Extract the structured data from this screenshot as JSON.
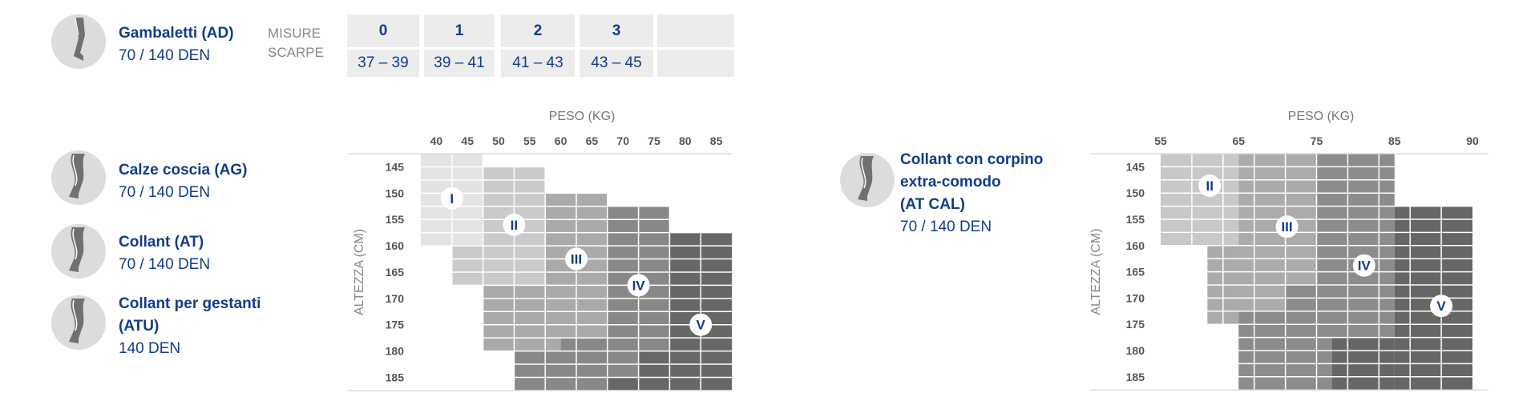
{
  "colors": {
    "accent": "#123c8a",
    "label": "#555555",
    "table_bg": "#ececec"
  },
  "products_top": {
    "icon": "knee-sock-icon",
    "title": "Gambaletti (AD)",
    "sub": "70 / 140 DEN"
  },
  "shoe_table": {
    "label_line1": "MISURE",
    "label_line2": "SCARPE",
    "sizes": [
      "0",
      "1",
      "2",
      "3",
      ""
    ],
    "ranges": [
      "37 – 39",
      "39 – 41",
      "41 – 43",
      "43 – 45",
      ""
    ]
  },
  "products_left": [
    {
      "icon": "thigh-stocking-icon",
      "title_lines": [
        "Calze coscia (AG)"
      ],
      "sub": "70 / 140 DEN"
    },
    {
      "icon": "tights-icon",
      "title_lines": [
        "Collant (AT)"
      ],
      "sub": "70 / 140 DEN"
    },
    {
      "icon": "maternity-tights-icon",
      "title_lines": [
        "Collant per gestanti",
        "(ATU)"
      ],
      "sub": "140 DEN"
    }
  ],
  "products_right": {
    "icon": "comfort-tights-icon",
    "title_lines": [
      "Collant con corpino",
      "extra-comodo",
      "(AT CAL)"
    ],
    "sub": "70 / 140 DEN"
  },
  "chart_data": [
    {
      "type": "heatmap",
      "xlabel": "PESO (KG)",
      "ylabel": "ALTEZZA (CM)",
      "x_ticks": [
        "40",
        "45",
        "50",
        "55",
        "60",
        "65",
        "70",
        "75",
        "80",
        "85"
      ],
      "y_ticks": [
        "145",
        "150",
        "155",
        "160",
        "165",
        "170",
        "175",
        "180",
        "185"
      ],
      "xlim": [
        37.5,
        87.5
      ],
      "ylim": [
        142.5,
        187.5
      ],
      "zones": [
        {
          "name": "I",
          "color": "#e3e3e3",
          "marker": [
            42.5,
            151
          ],
          "areas": [
            [
              37.5,
              47.5,
              142.5,
              160
            ]
          ]
        },
        {
          "name": "II",
          "color": "#cacaca",
          "marker": [
            52.5,
            156
          ],
          "areas": [
            [
              47.5,
              57.5,
              145,
              167.5
            ],
            [
              42.5,
              47.5,
              160,
              167.5
            ]
          ]
        },
        {
          "name": "III",
          "color": "#aaaaaa",
          "marker": [
            62.5,
            162.5
          ],
          "areas": [
            [
              57.5,
              67.5,
              150,
              177.5
            ],
            [
              47.5,
              57.5,
              167.5,
              180
            ],
            [
              57.5,
              60,
              177.5,
              180
            ]
          ]
        },
        {
          "name": "IV",
          "color": "#888888",
          "marker": [
            72.5,
            167.5
          ],
          "areas": [
            [
              67.5,
              72.5,
              152.5,
              185
            ],
            [
              72.5,
              77.5,
              152.5,
              180
            ],
            [
              60,
              67.5,
              177.5,
              180
            ],
            [
              52.5,
              67.5,
              180,
              187.5
            ]
          ]
        },
        {
          "name": "V",
          "color": "#676767",
          "marker": [
            82.5,
            175
          ],
          "areas": [
            [
              77.5,
              87.5,
              157.5,
              187.5
            ],
            [
              72.5,
              77.5,
              180,
              187.5
            ],
            [
              67.5,
              72.5,
              185,
              187.5
            ]
          ]
        }
      ]
    },
    {
      "type": "heatmap",
      "xlabel": "PESO (KG)",
      "ylabel": "ALTEZZA (CM)",
      "x_ticks": [
        "55",
        "65",
        "75",
        "85",
        "90"
      ],
      "y_ticks": [
        "145",
        "150",
        "155",
        "160",
        "165",
        "170",
        "175",
        "180",
        "185"
      ],
      "xlim": [
        55,
        90
      ],
      "ylim": [
        142.5,
        187.5
      ],
      "zones": [
        {
          "name": "II",
          "color": "#c8c8c8",
          "marker": [
            61.3,
            148.6
          ],
          "areas": [
            [
              55,
              65,
              142.5,
              160
            ]
          ]
        },
        {
          "name": "III",
          "color": "#ababab",
          "marker": [
            71.2,
            156.4
          ],
          "areas": [
            [
              65,
              75,
              142.5,
              167.5
            ],
            [
              61,
              75,
              160,
              167.5
            ],
            [
              61,
              71,
              167.5,
              172.5
            ],
            [
              61,
              65,
              172.5,
              175
            ]
          ]
        },
        {
          "name": "IV",
          "color": "#8c8c8c",
          "marker": [
            81.1,
            163.8
          ],
          "areas": [
            [
              75,
              85,
              142.5,
              187.5
            ],
            [
              71,
              75,
              167.5,
              187.5
            ],
            [
              65,
              71,
              172.5,
              187.5
            ]
          ]
        },
        {
          "name": "V",
          "color": "#666666",
          "marker": [
            88,
            171.5
          ],
          "areas": [
            [
              85,
              90,
              152.5,
              187.5
            ],
            [
              77,
              85,
              177.5,
              187.5
            ]
          ]
        }
      ]
    }
  ]
}
